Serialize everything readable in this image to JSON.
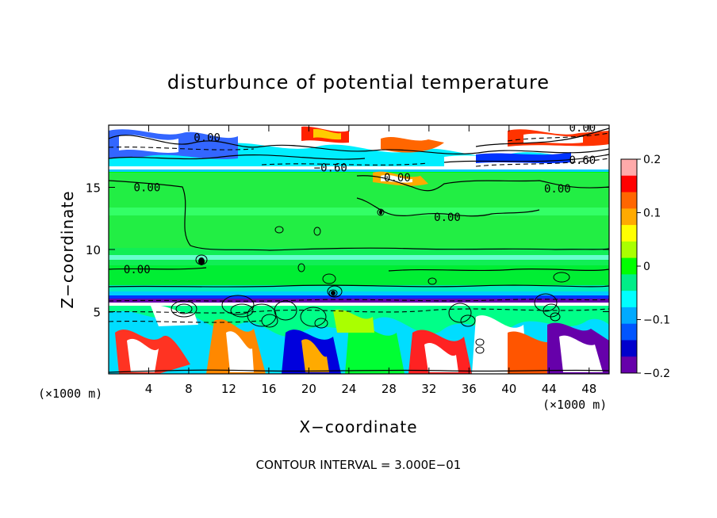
{
  "chart_data": {
    "type": "heatmap",
    "title": "disturbunce of potential temperature",
    "xlabel": "X−coordinate",
    "ylabel": "Z−coordinate",
    "x_unit_left": "(×1000 m)",
    "x_unit_right": "(×1000 m)",
    "xlim": [
      0,
      50
    ],
    "ylim": [
      0,
      20
    ],
    "x_ticks": [
      4,
      8,
      12,
      16,
      20,
      24,
      28,
      32,
      36,
      40,
      44,
      48
    ],
    "y_ticks": [
      5,
      10,
      15
    ],
    "footer": "CONTOUR INTERVAL = 3.000E−01",
    "colorbar": {
      "ticks": [
        "0.2",
        "0.1",
        "0",
        "−0.1",
        "−0.2"
      ],
      "range": [
        -0.2,
        0.2
      ],
      "colors": [
        "#ffaaaa",
        "#ff0000",
        "#ff6600",
        "#ffaa00",
        "#ffff00",
        "#aaff00",
        "#00ff00",
        "#00ee88",
        "#00ffff",
        "#00aaff",
        "#0055ff",
        "#0000cc",
        "#6600aa"
      ]
    },
    "contour_labels": [
      {
        "text": "0.00",
        "x": 8.5,
        "y": 19.0
      },
      {
        "text": "−0.60",
        "x": 20.5,
        "y": 16.6
      },
      {
        "text": "0.00",
        "x": 46.0,
        "y": 19.8
      },
      {
        "text": "0.60",
        "x": 46.0,
        "y": 17.2
      },
      {
        "text": "0.00",
        "x": 2.5,
        "y": 15.0
      },
      {
        "text": "0.00",
        "x": 27.5,
        "y": 15.8
      },
      {
        "text": "0.00",
        "x": 43.5,
        "y": 14.9
      },
      {
        "text": "0.00",
        "x": 32.5,
        "y": 12.6
      },
      {
        "text": "0.00",
        "x": 1.5,
        "y": 8.4
      }
    ]
  }
}
